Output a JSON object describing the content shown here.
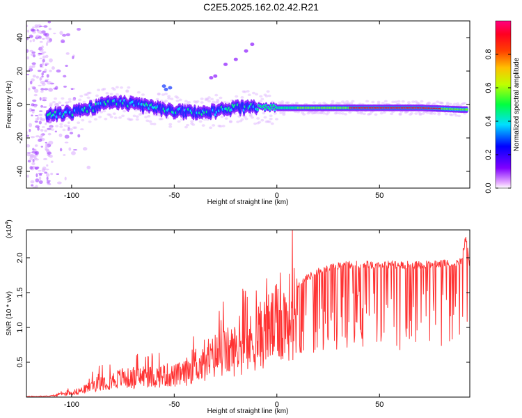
{
  "title": "C2E5.2025.162.02.42.R21",
  "colors": {
    "spectrogram_background": "#ffffff",
    "snr_line": "#ff3333",
    "axis": "#000000"
  },
  "chart_data": [
    {
      "type": "heatmap",
      "title": "C2E5.2025.162.02.42.R21",
      "xlabel": "Height of straight line (km)",
      "ylabel": "Frequency (Hz)",
      "xlim": [
        -122,
        94
      ],
      "ylim": [
        -50,
        50
      ],
      "xticks": [
        -100,
        -50,
        0,
        50
      ],
      "yticks": [
        -40,
        -20,
        0,
        20,
        40
      ],
      "colorbar": {
        "label": "Normalized spectral amplitude",
        "range": [
          0,
          1
        ],
        "ticks": [
          "0.0",
          "0.2",
          "0.4",
          "0.6",
          "0.8"
        ],
        "colormap": [
          "#ffffff",
          "#8000ff",
          "#0000ff",
          "#00e0ff",
          "#00ff00",
          "#ffff00",
          "#ff8000",
          "#ff0000",
          "#ff0080"
        ]
      },
      "ridge_frequency_hz": [
        {
          "x": -110,
          "y": -6
        },
        {
          "x": -100,
          "y": -5
        },
        {
          "x": -90,
          "y": -2
        },
        {
          "x": -80,
          "y": 2
        },
        {
          "x": -70,
          "y": 0
        },
        {
          "x": -60,
          "y": -2
        },
        {
          "x": -50,
          "y": -4
        },
        {
          "x": -40,
          "y": -5
        },
        {
          "x": -30,
          "y": -4
        },
        {
          "x": -20,
          "y": -2
        },
        {
          "x": -10,
          "y": -2
        },
        {
          "x": 0,
          "y": -2
        },
        {
          "x": 10,
          "y": -2
        },
        {
          "x": 30,
          "y": -2
        },
        {
          "x": 50,
          "y": -2
        },
        {
          "x": 70,
          "y": -2
        },
        {
          "x": 90,
          "y": -3
        }
      ]
    },
    {
      "type": "line",
      "xlabel": "Height of straight line (km)",
      "ylabel": "SNR (10 * v/v)",
      "y_multiplier_label": "(x10",
      "y_multiplier_exponent": "4",
      "xlim": [
        -122,
        94
      ],
      "ylim": [
        0,
        2.4
      ],
      "xticks": [
        -100,
        -50,
        0,
        50
      ],
      "yticks": [
        "0.5",
        "1.0",
        "1.5",
        "2.0"
      ],
      "series": [
        {
          "color": "#ff3333",
          "x": [
            -122,
            -115,
            -110,
            -105,
            -100,
            -95,
            -90,
            -85,
            -80,
            -75,
            -70,
            -65,
            -60,
            -55,
            -50,
            -45,
            -40,
            -35,
            -30,
            -25,
            -20,
            -15,
            -10,
            -5,
            0,
            5,
            10,
            15,
            20,
            25,
            30,
            35,
            40,
            45,
            50,
            55,
            60,
            65,
            70,
            75,
            80,
            85,
            90,
            92,
            94
          ],
          "y": [
            0.01,
            0.01,
            0.02,
            0.05,
            0.08,
            0.12,
            0.2,
            0.28,
            0.3,
            0.35,
            0.32,
            0.38,
            0.35,
            0.4,
            0.38,
            0.42,
            0.6,
            0.55,
            0.75,
            0.8,
            0.85,
            0.9,
            1.05,
            1.2,
            1.3,
            1.4,
            1.6,
            1.72,
            1.8,
            1.85,
            1.88,
            1.9,
            1.9,
            1.9,
            1.9,
            1.9,
            1.9,
            1.9,
            1.9,
            1.91,
            1.91,
            1.92,
            1.95,
            2.3,
            1.85
          ]
        }
      ]
    }
  ]
}
